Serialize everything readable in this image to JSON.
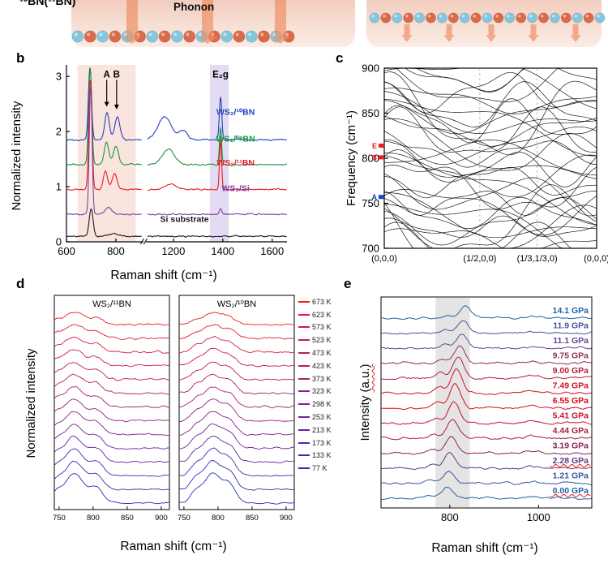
{
  "illustration": {
    "bn_label": "¹⁰BN(¹¹BN)",
    "phonon_label": "Phonon",
    "atom_color_a": "#d96a4a",
    "atom_color_b": "#85c6de",
    "arrow_color": "#ee9066"
  },
  "panels": {
    "b": {
      "label": "b",
      "xlabel": "Raman shift (cm⁻¹)",
      "ylabel": "Normalized intensity"
    },
    "c": {
      "label": "c",
      "ylabel": "Frequency (cm⁻¹)"
    },
    "d": {
      "label": "d",
      "xlabel": "Raman shift (cm⁻¹)",
      "ylabel": "Normalized intensity"
    },
    "e": {
      "label": "e",
      "xlabel": "Raman shift (cm⁻¹)",
      "ylabel_main": "Intensity ",
      "ylabel_units": "(a.u.)"
    }
  },
  "chart_data": [
    {
      "id": "b",
      "type": "line",
      "xlabel": "Raman shift (cm⁻¹)",
      "ylabel": "Normalized intensity",
      "x_segments": [
        [
          600,
          905
        ],
        [
          1095,
          1660
        ]
      ],
      "xticks": [
        600,
        800,
        1200,
        1400,
        1600
      ],
      "ylim": [
        0,
        3.12
      ],
      "yticks": [
        0,
        1,
        2,
        3
      ],
      "shaded_bands": [
        {
          "from": 645,
          "to": 880,
          "color": "#f5c5b5",
          "opacity": 0.45
        },
        {
          "from": 1348,
          "to": 1424,
          "color": "#cfc3e8",
          "opacity": 0.6
        }
      ],
      "series": [
        {
          "name": "WS₂/¹⁰BN",
          "color": "#2140c0",
          "offset": 1.85,
          "noise": 0.016,
          "peaks": [
            [
              695,
              1.3,
              9
            ],
            [
              764,
              0.5,
              13
            ],
            [
              806,
              0.42,
              15
            ],
            [
              1165,
              0.42,
              38
            ],
            [
              1240,
              0.16,
              24
            ],
            [
              1391,
              0.78,
              7
            ]
          ],
          "label_xy": [
            1452,
            2.3
          ]
        },
        {
          "name": "WS₂/ᴺᵃBN",
          "color": "#149640",
          "offset": 1.4,
          "noise": 0.015,
          "peaks": [
            [
              696,
              1.75,
              9
            ],
            [
              762,
              0.4,
              13
            ],
            [
              800,
              0.33,
              15
            ],
            [
              1180,
              0.28,
              34
            ],
            [
              1391,
              0.68,
              6
            ]
          ],
          "label_xy": [
            1452,
            1.82
          ]
        },
        {
          "name": "WS₂/¹¹BN",
          "color": "#e81c24",
          "offset": 0.95,
          "noise": 0.015,
          "peaks": [
            [
              697,
              2.0,
              9
            ],
            [
              758,
              0.33,
              12
            ],
            [
              795,
              0.28,
              14
            ],
            [
              1190,
              0.1,
              30
            ],
            [
              1391,
              0.9,
              6
            ]
          ],
          "label_xy": [
            1452,
            1.38
          ]
        },
        {
          "name": "WS₂/Si",
          "color": "#7d3fa5",
          "offset": 0.5,
          "noise": 0.015,
          "peaks": [
            [
              698,
              2.3,
              8
            ],
            [
              770,
              0.12,
              20
            ],
            [
              1391,
              0.1,
              7
            ]
          ],
          "label_xy": [
            1452,
            0.92
          ]
        },
        {
          "name": "Si substrate",
          "color": "#1a1a1a",
          "offset": 0.1,
          "noise": 0.014,
          "peaks": [
            [
              700,
              0.5,
              11
            ],
            [
              790,
              0.05,
              25
            ]
          ],
          "label_xy": [
            1245,
            0.36
          ]
        }
      ],
      "annotations": [
        {
          "text": "A",
          "x": 763,
          "y": 2.98,
          "arrow": true,
          "arrow_y": 2.45
        },
        {
          "text": "B",
          "x": 803,
          "y": 2.98,
          "arrow": true,
          "arrow_y": 2.4
        },
        {
          "text": "E₂g",
          "x": 1391,
          "y": 2.98,
          "arrow": false
        }
      ]
    },
    {
      "id": "c",
      "type": "line",
      "ylabel": "Frequency (cm⁻¹)",
      "ylim": [
        700,
        900
      ],
      "yticks": [
        700,
        750,
        800,
        850,
        900
      ],
      "xpath_labels": [
        {
          "text": "(0,0,0)",
          "t": 0
        },
        {
          "text": "(1/2,0,0)",
          "t": 0.45
        },
        {
          "text": "(1/3,1/3,0)",
          "t": 0.72
        },
        {
          "text": "(0,0,0)",
          "t": 1
        }
      ],
      "dashed_lines_t": [
        0.45,
        0.72
      ],
      "band_model": "f(t)=f0+a1*sin(k1*pi*t+p1)+a2*sin(k2*pi*t+p2), clipped to [700,900]",
      "bands": [
        [
          710,
          12,
          2,
          0.3,
          5,
          5,
          1.2
        ],
        [
          705,
          18,
          3,
          1.1,
          6,
          6,
          0.4
        ],
        [
          715,
          25,
          2,
          2.0,
          8,
          4,
          2.2
        ],
        [
          722,
          10,
          4,
          0.8,
          4,
          7,
          1.9
        ],
        [
          730,
          20,
          2,
          2.8,
          7,
          5,
          0.7
        ],
        [
          738,
          15,
          3,
          1.5,
          5,
          6,
          2.6
        ],
        [
          745,
          22,
          2,
          0.2,
          9,
          4,
          1.4
        ],
        [
          752,
          12,
          4,
          2.4,
          4,
          8,
          0.9
        ],
        [
          760,
          18,
          3,
          1.8,
          6,
          5,
          2.1
        ],
        [
          768,
          25,
          2,
          0.6,
          8,
          6,
          1.6
        ],
        [
          775,
          14,
          3,
          2.9,
          5,
          7,
          0.3
        ],
        [
          782,
          20,
          2,
          1.2,
          7,
          4,
          2.8
        ],
        [
          790,
          16,
          4,
          0.4,
          6,
          6,
          1.1
        ],
        [
          798,
          22,
          2,
          2.2,
          8,
          5,
          0.6
        ],
        [
          806,
          12,
          3,
          1.0,
          4,
          7,
          2.4
        ],
        [
          815,
          18,
          2,
          2.6,
          6,
          4,
          1.8
        ],
        [
          824,
          24,
          3,
          0.9,
          9,
          6,
          0.2
        ],
        [
          832,
          14,
          2,
          1.7,
          5,
          5,
          2.9
        ],
        [
          840,
          20,
          4,
          0.1,
          7,
          7,
          1.3
        ],
        [
          848,
          16,
          2,
          2.3,
          6,
          4,
          0.8
        ],
        [
          856,
          22,
          3,
          1.4,
          8,
          6,
          2.0
        ],
        [
          865,
          12,
          2,
          0.7,
          4,
          5,
          1.5
        ],
        [
          874,
          18,
          3,
          2.7,
          6,
          7,
          0.5
        ],
        [
          882,
          24,
          2,
          1.9,
          9,
          4,
          2.5
        ],
        [
          890,
          14,
          3,
          0.5,
          5,
          6,
          1.0
        ],
        [
          898,
          20,
          2,
          2.1,
          7,
          5,
          2.7
        ],
        [
          718,
          30,
          1,
          0.9,
          10,
          3,
          2.3
        ],
        [
          742,
          28,
          1,
          2.5,
          8,
          3,
          0.4
        ],
        [
          766,
          32,
          1,
          1.3,
          9,
          3,
          1.7
        ],
        [
          788,
          26,
          1,
          0.2,
          7,
          3,
          2.9
        ],
        [
          810,
          30,
          1,
          2.0,
          10,
          3,
          0.6
        ],
        [
          834,
          28,
          1,
          1.1,
          8,
          3,
          2.2
        ],
        [
          858,
          26,
          1,
          2.8,
          9,
          3,
          1.0
        ],
        [
          876,
          30,
          1,
          0.5,
          7,
          3,
          1.9
        ],
        [
          845,
          40,
          2,
          1.6,
          12,
          5,
          0.9
        ],
        [
          725,
          35,
          2,
          2.7,
          12,
          5,
          2.1
        ]
      ],
      "mode_markers": [
        {
          "label": "E",
          "freq": 814,
          "color": "#e81c24"
        },
        {
          "label": "B",
          "freq": 801,
          "color": "#e81c24"
        },
        {
          "label": "A",
          "freq": 757,
          "color": "#2140c0"
        }
      ]
    },
    {
      "id": "d",
      "type": "line",
      "xlabel": "Raman shift (cm⁻¹)",
      "ylabel": "Normalized intensity",
      "xlim": [
        743,
        912
      ],
      "xticks": [
        750,
        800,
        850,
        900
      ],
      "temperatures": [
        {
          "label": "673 K",
          "color": "#ed1c24"
        },
        {
          "label": "623 K",
          "color": "#e41b30"
        },
        {
          "label": "573 K",
          "color": "#da1a3e"
        },
        {
          "label": "523 K",
          "color": "#cf1a4c"
        },
        {
          "label": "473 K",
          "color": "#c31a5a"
        },
        {
          "label": "423 K",
          "color": "#b61b68"
        },
        {
          "label": "373 K",
          "color": "#a81c76"
        },
        {
          "label": "323 K",
          "color": "#981d84"
        },
        {
          "label": "298 K",
          "color": "#871f92"
        },
        {
          "label": "253 K",
          "color": "#74219e"
        },
        {
          "label": "213 K",
          "color": "#6023a8"
        },
        {
          "label": "173 K",
          "color": "#4b26b0"
        },
        {
          "label": "133 K",
          "color": "#3629b6"
        },
        {
          "label": "77 K",
          "color": "#2433bc"
        }
      ],
      "subpanels": [
        {
          "title": "WS₂/¹¹BN",
          "peak_center": 772,
          "peak_width": 20,
          "shoulder_center": 805,
          "shoulder_width": 14
        },
        {
          "title": "WS₂/¹⁰BN",
          "peak_center": 792,
          "peak_width": 20,
          "shoulder_center": 818,
          "shoulder_width": 13
        }
      ]
    },
    {
      "id": "e",
      "type": "line",
      "xlabel": "Raman shift (cm⁻¹)",
      "ylabel": "Intensity (a.u.)",
      "xlim": [
        645,
        1120
      ],
      "xticks": [
        800,
        1000
      ],
      "shaded_band": {
        "from": 768,
        "to": 845,
        "color": "#c9c9c9",
        "opacity": 0.5
      },
      "curves": [
        {
          "label": "14.1 GPa",
          "color": "#1f63a8",
          "peak_c": 836,
          "peak_h": 0.3,
          "squiggle": false
        },
        {
          "label": "11.9 GPa",
          "color": "#40549e",
          "peak_c": 830,
          "peak_h": 0.33,
          "squiggle": false
        },
        {
          "label": "11.1 GPa",
          "color": "#664390",
          "peak_c": 827,
          "peak_h": 0.36,
          "squiggle": false
        },
        {
          "label": "9.75 GPa",
          "color": "#8f2f5c",
          "peak_c": 822,
          "peak_h": 0.48,
          "squiggle": false
        },
        {
          "label": "9.00 GPa",
          "color": "#b81f33",
          "peak_c": 819,
          "peak_h": 0.58,
          "squiggle": false
        },
        {
          "label": "7.49 GPa",
          "color": "#d01223",
          "peak_c": 815,
          "peak_h": 0.65,
          "squiggle": false
        },
        {
          "label": "6.55 GPa",
          "color": "#de0a17",
          "peak_c": 812,
          "peak_h": 0.68,
          "squiggle": false
        },
        {
          "label": "5.41 GPa",
          "color": "#c6122b",
          "peak_c": 809,
          "peak_h": 0.6,
          "squiggle": false
        },
        {
          "label": "4.44 GPa",
          "color": "#a71c42",
          "peak_c": 806,
          "peak_h": 0.52,
          "squiggle": false
        },
        {
          "label": "3.19 GPa",
          "color": "#872658",
          "peak_c": 803,
          "peak_h": 0.46,
          "squiggle": false
        },
        {
          "label": "2.28 GPa",
          "color": "#5a3a80",
          "peak_c": 800,
          "peak_h": 0.4,
          "squiggle": true
        },
        {
          "label": "1.21 GPa",
          "color": "#3b55a4",
          "peak_c": 797,
          "peak_h": 0.34,
          "squiggle": false
        },
        {
          "label": "0.00 GPa",
          "color": "#1f63a8",
          "peak_c": 794,
          "peak_h": 0.3,
          "squiggle": true
        }
      ]
    }
  ]
}
